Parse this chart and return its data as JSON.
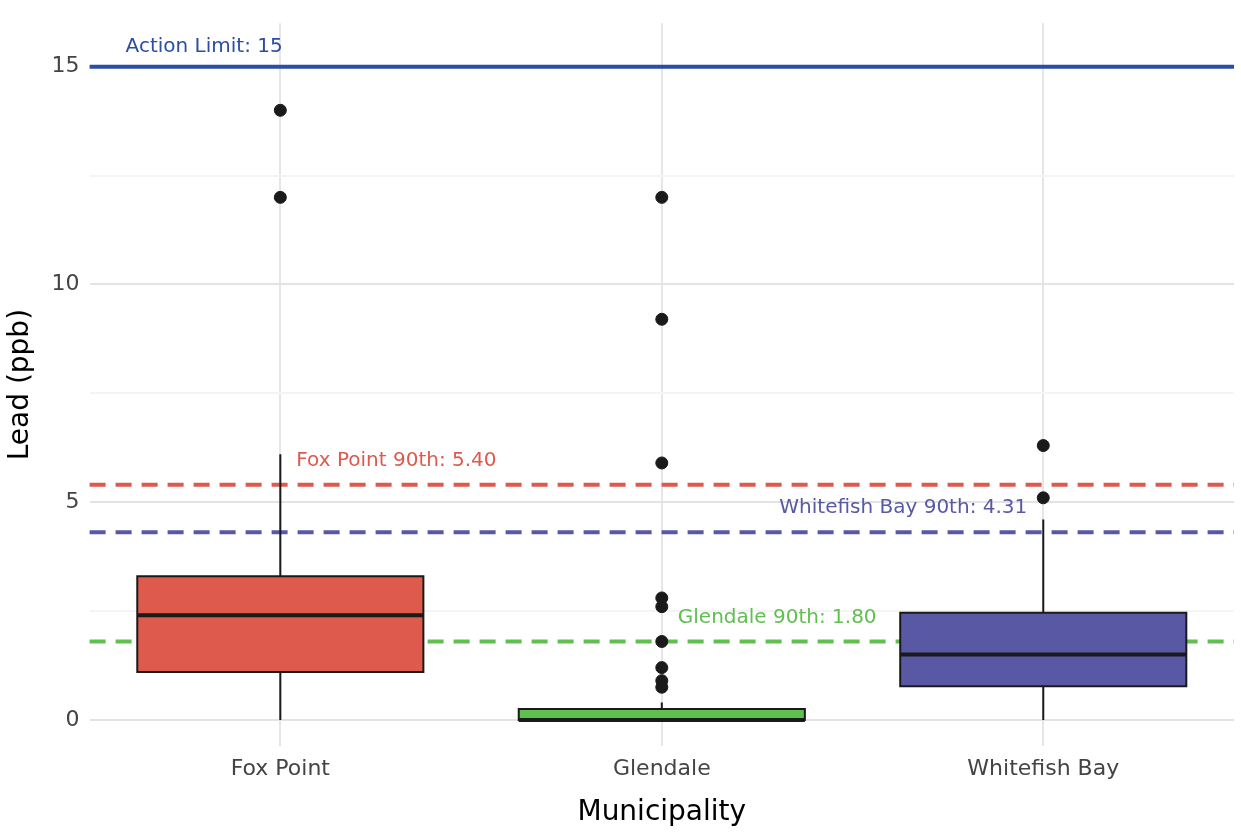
{
  "chart_data": {
    "type": "box",
    "xlabel": "Municipality",
    "ylabel": "Lead (ppb)",
    "categories": [
      "Fox Point",
      "Glendale",
      "Whitefish Bay"
    ],
    "colors": [
      "#dd5a4d",
      "#5fbf4f",
      "#5858a5"
    ],
    "boxes": [
      {
        "low": 0,
        "q1": 1.1,
        "median": 2.4,
        "q3": 3.3,
        "high": 6.1,
        "outliers": [
          14,
          12
        ]
      },
      {
        "low": 0,
        "q1": 0,
        "median": 0,
        "q3": 0.25,
        "high": 0.4,
        "outliers": [
          12,
          9.2,
          5.9,
          2.8,
          2.6,
          1.8,
          1.2,
          0.9,
          0.75
        ]
      },
      {
        "low": 0,
        "q1": 0.77,
        "median": 1.5,
        "q3": 2.46,
        "high": 4.6,
        "outliers": [
          6.3,
          5.1
        ]
      }
    ],
    "ylim": [
      -0.6,
      16
    ],
    "yticks": [
      0,
      {
        "value": 2.5,
        "label": null
      },
      5,
      {
        "value": 7.5,
        "label": null
      },
      10,
      {
        "value": 12.5,
        "label": null
      },
      15
    ],
    "grid": true,
    "legend": false,
    "ref_lines": [
      {
        "axis": "y",
        "value": 15,
        "label": "Action Limit: 15",
        "color": "#2a4ea3",
        "line_style": "solid"
      },
      {
        "axis": "y",
        "value": 5.4,
        "label": "Fox Point 90th: 5.40",
        "color": "#dd5a4d",
        "line_style": "dashed"
      },
      {
        "axis": "y",
        "value": 1.8,
        "label": "Glendale 90th: 1.80",
        "color": "#5fbf4f",
        "line_style": "dashed"
      },
      {
        "axis": "y",
        "value": 4.31,
        "label": "Whitefish Bay 90th: 4.31",
        "color": "#5858a5",
        "line_style": "dashed"
      }
    ]
  }
}
